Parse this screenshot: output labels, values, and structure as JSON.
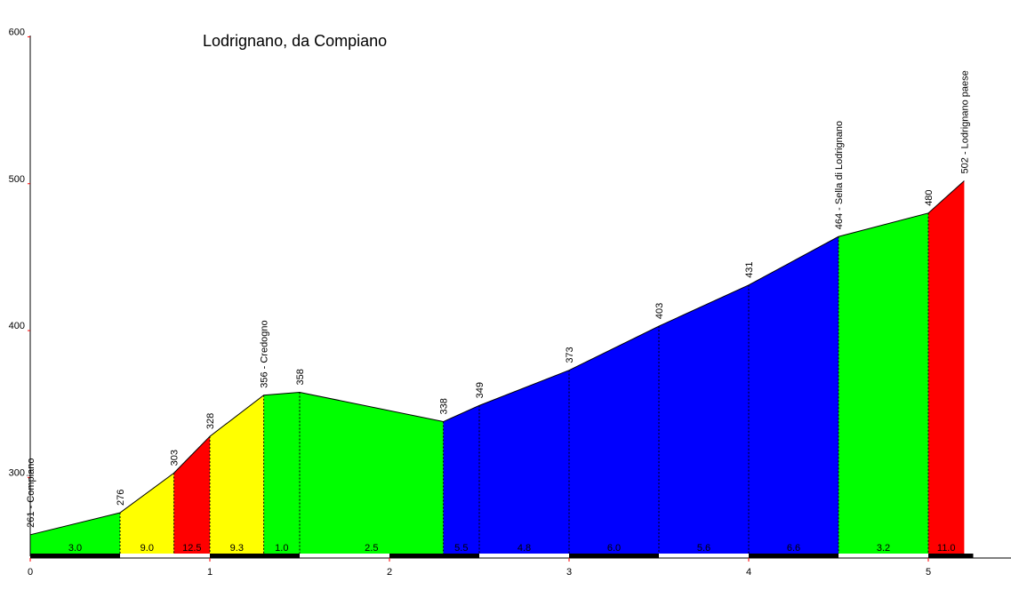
{
  "chart_data": {
    "type": "area",
    "title": "Lodrignano, da Compiano",
    "xlabel": "",
    "ylabel": "",
    "xlim": [
      0,
      5.5
    ],
    "ylim": [
      250,
      600
    ],
    "x_ticks": [
      "0",
      "1",
      "2",
      "3",
      "4",
      "5"
    ],
    "y_ticks": [
      "300",
      "400",
      "500",
      "600"
    ],
    "grid": false,
    "legend": "none",
    "colors": {
      "green": "#00ff00",
      "yellow": "#ffff00",
      "red": "#ff0000",
      "blue": "#0000ff",
      "axis": "#000000",
      "tick": "#ff0000"
    },
    "points": [
      {
        "x": 0.0,
        "y": 261,
        "label": "261 - Compiano"
      },
      {
        "x": 0.5,
        "y": 276,
        "label": "276"
      },
      {
        "x": 0.8,
        "y": 303,
        "label": "303"
      },
      {
        "x": 1.0,
        "y": 328,
        "label": "328"
      },
      {
        "x": 1.3,
        "y": 356,
        "label": "356 - Credogno"
      },
      {
        "x": 1.5,
        "y": 358,
        "label": "358"
      },
      {
        "x": 2.3,
        "y": 338,
        "label": "338"
      },
      {
        "x": 2.5,
        "y": 349,
        "label": "349"
      },
      {
        "x": 3.0,
        "y": 373,
        "label": "373"
      },
      {
        "x": 3.5,
        "y": 403,
        "label": "403"
      },
      {
        "x": 4.0,
        "y": 431,
        "label": "431"
      },
      {
        "x": 4.5,
        "y": 464,
        "label": "464 - Sella di Lodrignano"
      },
      {
        "x": 5.0,
        "y": 480,
        "label": "480"
      },
      {
        "x": 5.2,
        "y": 502,
        "label": "502 - Lodrignano paese"
      }
    ],
    "segments": [
      {
        "grade": "3.0",
        "color": "green"
      },
      {
        "grade": "9.0",
        "color": "yellow"
      },
      {
        "grade": "12.5",
        "color": "red"
      },
      {
        "grade": "9.3",
        "color": "yellow"
      },
      {
        "grade": "1.0",
        "color": "green"
      },
      {
        "grade": "2.5",
        "color": "green"
      },
      {
        "grade": "5.5",
        "color": "blue"
      },
      {
        "grade": "4.8",
        "color": "blue"
      },
      {
        "grade": "6.0",
        "color": "blue"
      },
      {
        "grade": "5.6",
        "color": "blue"
      },
      {
        "grade": "6.6",
        "color": "blue"
      },
      {
        "grade": "3.2",
        "color": "green"
      },
      {
        "grade": "11.0",
        "color": "red"
      }
    ]
  }
}
